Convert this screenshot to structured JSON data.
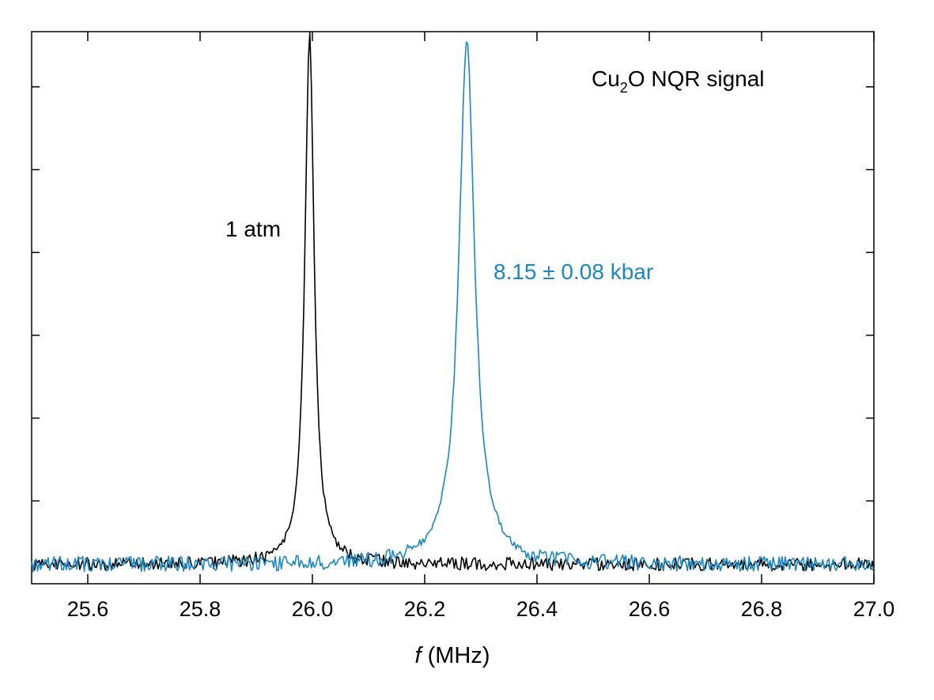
{
  "chart_data": {
    "type": "line",
    "title": "",
    "xlabel": {
      "symbol": "f",
      "unit": "(MHz)"
    },
    "ylabel": "",
    "xlim": [
      25.5,
      27.0
    ],
    "ylim": [
      0,
      1.0
    ],
    "xticks": [
      25.6,
      25.8,
      26.0,
      26.2,
      26.4,
      26.6,
      26.8,
      27.0
    ],
    "xtick_labels": [
      "25.6",
      "25.8",
      "26.0",
      "26.2",
      "26.4",
      "26.6",
      "26.8",
      "27.0"
    ],
    "yticks_unlabeled": [
      0.15,
      0.3,
      0.45,
      0.6,
      0.75,
      0.9
    ],
    "grid": false,
    "legend": "none",
    "annotations": {
      "title_box": {
        "base": "Cu",
        "sub": "2",
        "rest": "O NQR signal"
      },
      "atm_label": "1 atm",
      "kbar_label": "8.15 ± 0.08 kbar"
    },
    "series": [
      {
        "color": "#000000",
        "peak_center": 25.995,
        "peak_height": 0.995,
        "half_width": 0.01,
        "baseline": 0.035,
        "noise_amplitude": 0.012
      },
      {
        "color": "#1a87c0",
        "peak_center": 26.275,
        "peak_height": 0.983,
        "half_width": 0.017,
        "baseline": 0.035,
        "noise_amplitude": 0.014
      }
    ]
  }
}
